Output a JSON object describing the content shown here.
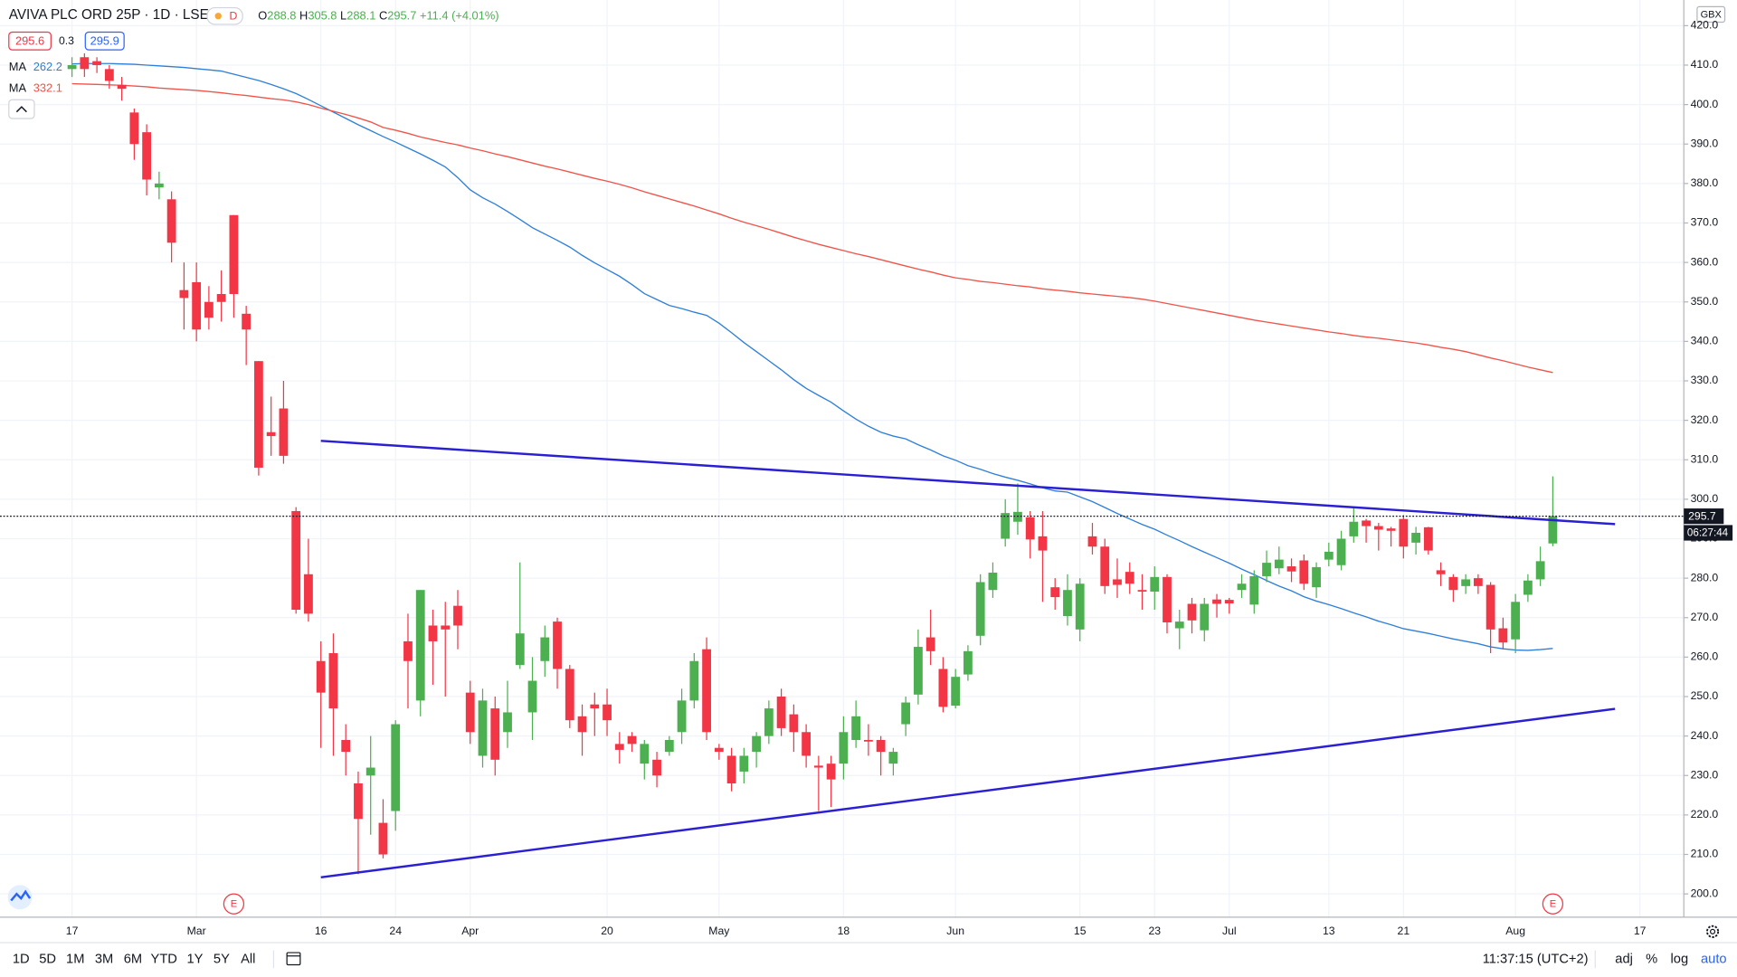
{
  "header": {
    "title": "AVIVA PLC ORD 25P · 1D · LSE",
    "badge": "D",
    "ohlc_labels": [
      "O",
      "H",
      "L",
      "C"
    ],
    "change": "+11.4 (+4.01%)",
    "bid": "295.6",
    "spread": "0.3",
    "ask": "295.9"
  },
  "currency": "GBX",
  "countdown": "06:27:44",
  "toolbar": {
    "timeframes": [
      "1D",
      "5D",
      "1M",
      "3M",
      "6M",
      "YTD",
      "1Y",
      "5Y",
      "All"
    ],
    "clock": "11:37:15 (UTC+2)",
    "options": [
      "adj",
      "%",
      "log",
      "auto"
    ]
  },
  "chart_data": {
    "type": "candlestick",
    "categories": [
      "17",
      null,
      null,
      null,
      null,
      null,
      null,
      null,
      null,
      null,
      "Mar",
      null,
      null,
      null,
      null,
      null,
      null,
      null,
      null,
      null,
      "16",
      null,
      null,
      null,
      null,
      null,
      "24",
      null,
      null,
      null,
      null,
      null,
      "Apr",
      null,
      null,
      null,
      null,
      null,
      null,
      null,
      null,
      null,
      null,
      "20",
      null,
      null,
      null,
      null,
      null,
      null,
      null,
      null,
      "May",
      null,
      null,
      null,
      null,
      null,
      null,
      null,
      null,
      null,
      "18",
      null,
      null,
      null,
      null,
      null,
      null,
      null,
      null,
      "Jun",
      null,
      null,
      null,
      null,
      null,
      null,
      null,
      null,
      null,
      "15",
      null,
      null,
      null,
      null,
      null,
      "23",
      null,
      null,
      null,
      null,
      null,
      "Jul",
      null,
      null,
      null,
      null,
      null,
      null,
      null,
      "13",
      null,
      null,
      null,
      null,
      null,
      "21",
      null,
      null,
      null,
      null,
      null,
      null,
      null,
      null,
      "Aug",
      null,
      null,
      null,
      null,
      null,
      null,
      null,
      null,
      null,
      "17"
    ],
    "open": [
      409,
      412,
      411,
      409,
      405,
      398,
      393,
      379,
      376,
      353,
      355,
      350,
      352,
      372,
      347,
      335,
      317,
      323,
      297,
      281,
      259,
      261,
      239,
      228,
      230,
      218,
      221,
      264,
      249,
      268,
      268,
      273,
      251,
      235,
      247,
      241,
      258,
      246,
      259,
      269,
      257,
      245,
      248,
      248,
      238,
      240,
      233,
      234,
      236,
      241,
      249,
      262,
      237,
      235,
      231,
      236,
      240,
      250,
      245.5,
      241,
      232.5,
      233,
      233,
      239,
      239,
      239,
      233,
      243,
      250.5,
      265,
      257,
      247.7,
      255.6,
      265.4,
      277,
      290,
      294.3,
      295.4,
      290.6,
      277.7,
      270.4,
      267,
      290.6,
      288,
      279.7,
      281.6,
      277,
      276.6,
      280.3,
      267.3,
      273.5,
      266.8,
      274.6,
      274.5,
      277,
      273.3,
      280.5,
      282.5,
      283,
      284.5,
      277.7,
      284.7,
      283.3,
      290.6,
      294.6,
      293.2,
      292.6,
      295,
      289,
      292.9,
      282,
      280.3,
      278,
      280,
      278.3,
      267.3,
      264.5,
      275.8,
      279.7,
      288.8,
      null,
      null,
      null,
      null,
      null,
      null,
      null
    ],
    "high": [
      412,
      413,
      412,
      410,
      407,
      399,
      395,
      383,
      378,
      360,
      360,
      354,
      358,
      372,
      349,
      335,
      326,
      330,
      298,
      290,
      264,
      266,
      243,
      231,
      240,
      224,
      244,
      271,
      277,
      272,
      274,
      277,
      254,
      252,
      250,
      254,
      284,
      260,
      268,
      270,
      258,
      248,
      251,
      252,
      241,
      241,
      239,
      236,
      240,
      252,
      261,
      265,
      238,
      237,
      237,
      241,
      249,
      252,
      248,
      243,
      235,
      235,
      245,
      249,
      243,
      240,
      237,
      250,
      267,
      272,
      260,
      257,
      263,
      281,
      284,
      300,
      304,
      297,
      297,
      280,
      281,
      280,
      294,
      290,
      285,
      284,
      281,
      283,
      281,
      272,
      275,
      275,
      276,
      275,
      281,
      282,
      287,
      288,
      285,
      286,
      284,
      289,
      292,
      298,
      295,
      294,
      293,
      296,
      293,
      293,
      284,
      281,
      281,
      281,
      279,
      270,
      276,
      281,
      288,
      305.8,
      null,
      null,
      null,
      null,
      null,
      null,
      null
    ],
    "low": [
      407,
      407,
      408,
      404,
      401,
      386,
      377,
      376,
      360,
      343,
      340,
      343,
      345,
      346,
      334,
      306,
      311,
      309,
      271,
      269,
      237,
      235,
      230,
      205,
      215,
      209,
      216,
      247,
      245,
      253,
      250,
      262,
      238,
      232,
      230,
      237,
      257,
      239,
      255,
      252,
      242,
      235,
      240,
      240,
      233,
      236,
      229,
      227,
      235,
      238,
      247,
      239,
      234,
      226,
      228,
      232,
      238,
      240,
      236,
      232,
      221,
      222,
      229,
      237,
      235,
      230,
      230,
      240,
      248,
      258,
      246,
      247,
      254,
      263,
      275,
      288,
      291,
      285,
      274,
      272,
      268,
      264,
      286,
      276,
      275,
      276,
      272,
      272,
      266,
      262,
      266,
      264,
      270,
      271,
      275,
      271,
      279,
      281,
      279,
      277,
      275,
      283,
      282,
      289,
      289,
      287,
      288,
      285,
      286,
      286,
      278,
      274,
      276,
      276,
      261,
      262,
      261,
      274,
      278,
      288.1,
      null,
      null,
      null,
      null,
      null,
      null,
      null
    ],
    "close": [
      410,
      409,
      410,
      406,
      404,
      390,
      381,
      380,
      365,
      351,
      343,
      346,
      350,
      352,
      343,
      308,
      316,
      311,
      272,
      271,
      251,
      247,
      236,
      219,
      232,
      210,
      243,
      259,
      277,
      264,
      267,
      268,
      241,
      249,
      234,
      246,
      266,
      254,
      265,
      257,
      244,
      241,
      247,
      244,
      236.5,
      238,
      238,
      230,
      239,
      249,
      259,
      241,
      236,
      228,
      235,
      240,
      247,
      242,
      241,
      235,
      232,
      229,
      241,
      245,
      238.6,
      236,
      236,
      248.5,
      262.6,
      261.5,
      247.4,
      255,
      261.5,
      279,
      281.4,
      296.5,
      296.8,
      289.8,
      287,
      275.2,
      277,
      278.6,
      288,
      278,
      278.3,
      278.6,
      276.6,
      280.3,
      268.8,
      269,
      269.3,
      273.5,
      273.5,
      273.6,
      278.6,
      280.5,
      283.9,
      284.7,
      281.7,
      278.6,
      282.8,
      286.7,
      290,
      294.3,
      293.2,
      292.3,
      292,
      288,
      291.5,
      287,
      281,
      277,
      279.7,
      278,
      267,
      263.7,
      274,
      279.4,
      284.3,
      295.7,
      null,
      null,
      null,
      null,
      null,
      null,
      null
    ],
    "up_color": "#4caf50",
    "down_color": "#f23645",
    "series": [
      {
        "name": "MA",
        "color": "#2f7fd8",
        "values": [
          410.3,
          410.4,
          410.4,
          410.4,
          410.3,
          410.2,
          410,
          409.8,
          409.6,
          409.4,
          409.1,
          408.8,
          408.5,
          407.7,
          406.9,
          406.1,
          405.1,
          404,
          402.8,
          401.3,
          399.7,
          398.1,
          396.5,
          394.9,
          393.4,
          391.9,
          390.5,
          389,
          387.5,
          385.9,
          384.2,
          381.5,
          378.4,
          376.4,
          374.8,
          372.9,
          370.9,
          368.8,
          367.2,
          365.6,
          363.9,
          361.8,
          359.9,
          358.2,
          356.5,
          354.4,
          352.1,
          350.6,
          349.1,
          348.3,
          347.4,
          346.6,
          344.6,
          342.2,
          339.7,
          337.4,
          335.1,
          332.8,
          330.3,
          328.1,
          326.3,
          324.6,
          322.4,
          320.3,
          318.5,
          317,
          316,
          315.3,
          313.8,
          312.5,
          311,
          309.9,
          308.5,
          307.6,
          306.5,
          305.6,
          304.8,
          303.9,
          302.9,
          302.1,
          301.8,
          300.6,
          299.4,
          297.9,
          296.4,
          295,
          293.6,
          292.4,
          290.9,
          289.5,
          288,
          286.6,
          285.2,
          283.8,
          282.3,
          280.9,
          279.4,
          278,
          276.8,
          275.3,
          274.2,
          273.3,
          272.3,
          271.2,
          270.2,
          269.1,
          268.2,
          267.2,
          266.6,
          266,
          265.3,
          264.6,
          264,
          263.4,
          262.6,
          262.1,
          261.8,
          261.7,
          261.9,
          262.2,
          null,
          null,
          null,
          null,
          null,
          null,
          null
        ]
      },
      {
        "name": "MA",
        "color": "#f0544a",
        "values": [
          405.3,
          405.2,
          405.1,
          405,
          404.9,
          404.7,
          404.5,
          404.2,
          404,
          403.8,
          403.6,
          403.3,
          403,
          402.6,
          402.3,
          401.9,
          401.5,
          401.2,
          400.7,
          400,
          399.1,
          398.3,
          397.5,
          396.6,
          395.6,
          394.2,
          393.5,
          392.7,
          391.8,
          391.1,
          390.4,
          389.8,
          389,
          388.3,
          387.5,
          386.8,
          386,
          385.2,
          384.4,
          383.7,
          382.9,
          382.1,
          381.3,
          380.6,
          379.8,
          378.9,
          377.9,
          377,
          376.1,
          375.2,
          374.3,
          373.3,
          372.3,
          371.2,
          370.2,
          369.3,
          368.4,
          367.4,
          366.4,
          365.5,
          364.6,
          363.8,
          363,
          362.2,
          361.5,
          360.7,
          359.9,
          359.1,
          358.3,
          357.6,
          356.8,
          356.1,
          355.7,
          355.2,
          354.9,
          354.5,
          354.1,
          353.8,
          353.3,
          353,
          352.7,
          352.3,
          352,
          351.7,
          351.4,
          351.1,
          350.7,
          350.2,
          349.6,
          349,
          348.4,
          347.8,
          347.2,
          346.6,
          346,
          345.4,
          344.9,
          344.4,
          343.9,
          343.4,
          342.9,
          342.4,
          342,
          341.5,
          341.1,
          340.8,
          340.4,
          340,
          339.6,
          339.1,
          338.5,
          338,
          337.4,
          336.6,
          335.8,
          335.1,
          334.3,
          333.5,
          332.8,
          332.1,
          null,
          null,
          null,
          null,
          null,
          null,
          null
        ]
      }
    ],
    "trend_lines": [
      {
        "color": "#2b1fd6",
        "points": [
          [
            20,
            314.8
          ],
          [
            124,
            293.7
          ]
        ]
      },
      {
        "color": "#2b1fd6",
        "points": [
          [
            20,
            204.2
          ],
          [
            124,
            246.9
          ]
        ]
      }
    ],
    "events": [
      {
        "x": 13,
        "label": "E"
      },
      {
        "x": 119,
        "label": "E"
      }
    ],
    "ylim": [
      194.1,
      426.5
    ],
    "yticks": [
      {
        "value": 200,
        "label": "200.0"
      },
      {
        "value": 210,
        "label": "210.0"
      },
      {
        "value": 220,
        "label": "220.0"
      },
      {
        "value": 230,
        "label": "230.0"
      },
      {
        "value": 240,
        "label": "240.0"
      },
      {
        "value": 250,
        "label": "250.0"
      },
      {
        "value": 260,
        "label": "260.0"
      },
      {
        "value": 270,
        "label": "270.0"
      },
      {
        "value": 280,
        "label": "280.0"
      },
      {
        "value": 290,
        "label": "290.0"
      },
      {
        "value": 300,
        "label": "300.0"
      },
      {
        "value": 310,
        "label": "310.0"
      },
      {
        "value": 320,
        "label": "320.0"
      },
      {
        "value": 330,
        "label": "330.0"
      },
      {
        "value": 340,
        "label": "340.0"
      },
      {
        "value": 350,
        "label": "350.0"
      },
      {
        "value": 360,
        "label": "360.0"
      },
      {
        "value": 370,
        "label": "370.0"
      },
      {
        "value": 380,
        "label": "380.0"
      },
      {
        "value": 390,
        "label": "390.0"
      },
      {
        "value": 400,
        "label": "400.0"
      },
      {
        "value": 410,
        "label": "410.0"
      },
      {
        "value": 420,
        "label": "420.0"
      }
    ],
    "grid": true
  }
}
